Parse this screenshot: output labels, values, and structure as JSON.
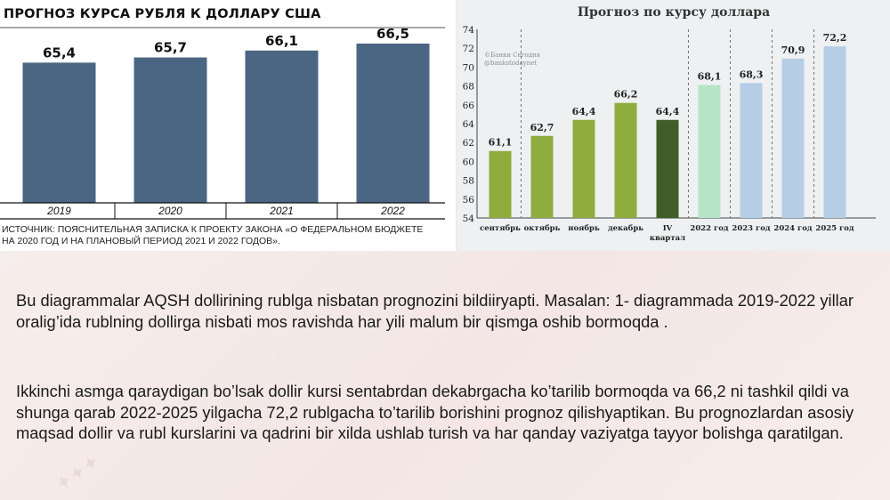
{
  "chart_data": [
    {
      "type": "bar",
      "title": "ПРОГНОЗ КУРСА РУБЛЯ К ДОЛЛАРУ США",
      "categories": [
        "2019",
        "2020",
        "2021",
        "2022"
      ],
      "values": [
        65.4,
        65.7,
        66.1,
        66.5
      ],
      "value_labels": [
        "65,4",
        "65,7",
        "66,1",
        "66,5"
      ],
      "color": "#4a6682",
      "source": "ИСТОЧНИК: ПОЯСНИТЕЛЬНАЯ ЗАПИСКА К ПРОЕКТУ ЗАКОНА «О ФЕДЕРАЛЬНОМ БЮДЖЕТЕ НА 2020 ГОД И НА ПЛАНОВЫЙ ПЕРИОД 2021 И 2022 ГОДОВ».",
      "grid": false,
      "legend": "none"
    },
    {
      "type": "bar",
      "title": "Прогноз по курсу доллара",
      "watermark": [
        "©Банки Сегодня",
        "@bankstodaynet"
      ],
      "categories": [
        "сентябрь",
        "октябрь",
        "ноябрь",
        "декабрь",
        "IV квартал",
        "2022 год",
        "2023 год",
        "2024 год",
        "2025 год"
      ],
      "values": [
        61.1,
        62.7,
        64.4,
        66.2,
        64.4,
        68.1,
        68.3,
        70.9,
        72.2
      ],
      "value_labels": [
        "61,1",
        "62,7",
        "64,4",
        "66,2",
        "64,4",
        "68,1",
        "68,3",
        "70,9",
        "72,2"
      ],
      "bar_colors": [
        "#8fac3e",
        "#8fac3e",
        "#8fac3e",
        "#8fac3e",
        "#3f5e2a",
        "#b5e4c6",
        "#b6cde6",
        "#b6cde6",
        "#b6cde6"
      ],
      "y_ticks": [
        "54",
        "56",
        "58",
        "60",
        "62",
        "64",
        "66",
        "68",
        "70",
        "72",
        "74"
      ],
      "ylim": [
        54,
        74
      ],
      "grid": false,
      "legend": "none"
    }
  ],
  "text": {
    "para1": "Bu diagrammalar AQSH dollirining rublga nisbatan prognozini bildiiryapti. Masalan: 1- diagrammada 2019-2022 yillar oralig’ida rublning dollirga nisbati mos ravishda har yili malum bir qismga oshib bormoqda .",
    "para2": "Ikkinchi asmga qaraydigan bo’lsak dollir kursi sentabrdan dekabrgacha ko’tarilib bormoqda va 66,2 ni tashkil qildi va shunga qarab 2022-2025 yilgacha 72,2 rublgacha to’tarilib borishini prognoz qilishyaptikan. Bu prognozlardan asosiy maqsad dollir va rubl kurslarini va qadrini bir xilda ushlab turish va har qanday vaziyatga tayyor bolishga qaratilgan."
  }
}
